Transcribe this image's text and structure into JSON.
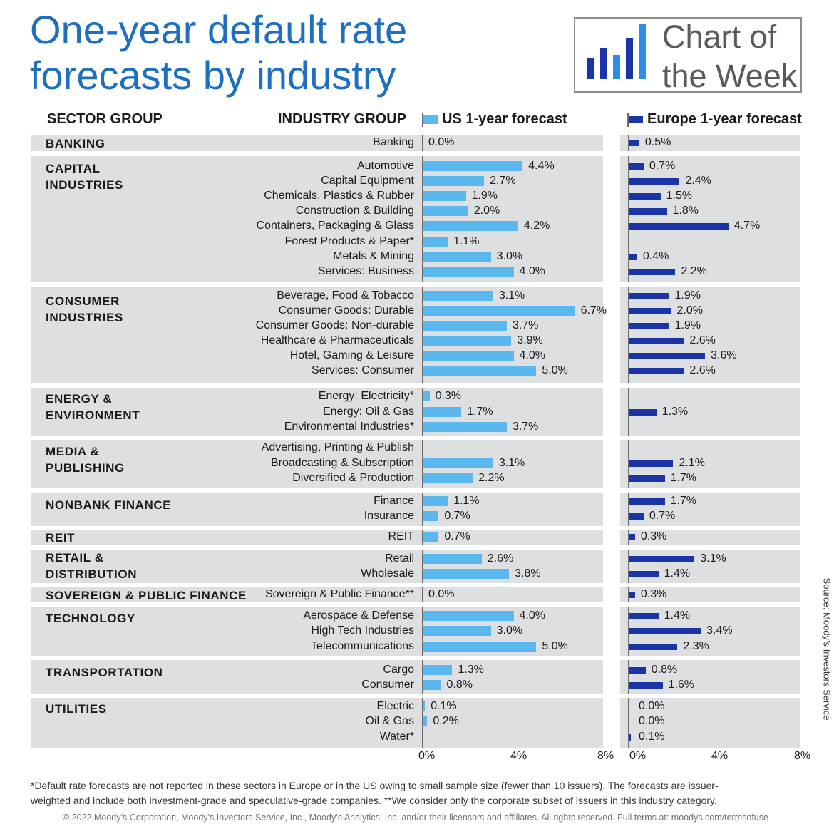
{
  "title": {
    "line1": "One-year default rate",
    "line2": "forecasts by industry"
  },
  "logo": {
    "line1": "Chart of",
    "line2": "the Week"
  },
  "headers": {
    "sector": "SECTOR GROUP",
    "industry": "INDUSTRY GROUP",
    "us": "US 1-year forecast",
    "europe": "Europe 1-year forecast"
  },
  "colors": {
    "title": "#1e6fc0",
    "us_bar": "#5ab8ef",
    "eu_bar": "#1b35a6",
    "band": "#dedfe1"
  },
  "chart_data": {
    "type": "bar",
    "orientation": "horizontal",
    "value_unit": "%",
    "xlim": [
      0,
      8
    ],
    "x_ticks": [
      "0%",
      "4%",
      "8%"
    ],
    "series": [
      {
        "name": "US 1-year forecast",
        "key": "us"
      },
      {
        "name": "Europe 1-year forecast",
        "key": "eu"
      }
    ],
    "groups": [
      {
        "sector": [
          "BANKING"
        ],
        "rows": [
          {
            "label": "Banking",
            "us": 0.0,
            "eu": 0.5,
            "us_label": "0.0%",
            "eu_label": "0.5%"
          }
        ]
      },
      {
        "sector": [
          "CAPITAL",
          "INDUSTRIES"
        ],
        "rows": [
          {
            "label": "Automotive",
            "us": 4.4,
            "eu": 0.7,
            "us_label": "4.4%",
            "eu_label": "0.7%"
          },
          {
            "label": "Capital Equipment",
            "us": 2.7,
            "eu": 2.4,
            "us_label": "2.7%",
            "eu_label": "2.4%"
          },
          {
            "label": "Chemicals, Plastics & Rubber",
            "us": 1.9,
            "eu": 1.5,
            "us_label": "1.9%",
            "eu_label": "1.5%"
          },
          {
            "label": "Construction & Building",
            "us": 2.0,
            "eu": 1.8,
            "us_label": "2.0%",
            "eu_label": "1.8%"
          },
          {
            "label": "Containers, Packaging & Glass",
            "us": 4.2,
            "eu": 4.7,
            "us_label": "4.2%",
            "eu_label": "4.7%"
          },
          {
            "label": "Forest Products & Paper*",
            "us": 1.1,
            "eu": null,
            "us_label": "1.1%",
            "eu_label": null
          },
          {
            "label": "Metals & Mining",
            "us": 3.0,
            "eu": 0.4,
            "us_label": "3.0%",
            "eu_label": "0.4%"
          },
          {
            "label": "Services: Business",
            "us": 4.0,
            "eu": 2.2,
            "us_label": "4.0%",
            "eu_label": "2.2%"
          }
        ]
      },
      {
        "sector": [
          "CONSUMER",
          "INDUSTRIES"
        ],
        "rows": [
          {
            "label": "Beverage, Food & Tobacco",
            "us": 3.1,
            "eu": 1.9,
            "us_label": "3.1%",
            "eu_label": "1.9%"
          },
          {
            "label": "Consumer Goods: Durable",
            "us": 6.7,
            "eu": 2.0,
            "us_label": "6.7%",
            "eu_label": "2.0%"
          },
          {
            "label": "Consumer Goods: Non-durable",
            "us": 3.7,
            "eu": 1.9,
            "us_label": "3.7%",
            "eu_label": "1.9%"
          },
          {
            "label": "Healthcare & Pharmaceuticals",
            "us": 3.9,
            "eu": 2.6,
            "us_label": "3.9%",
            "eu_label": "2.6%"
          },
          {
            "label": "Hotel, Gaming & Leisure",
            "us": 4.0,
            "eu": 3.6,
            "us_label": "4.0%",
            "eu_label": "3.6%"
          },
          {
            "label": "Services: Consumer",
            "us": 5.0,
            "eu": 2.6,
            "us_label": "5.0%",
            "eu_label": "2.6%"
          }
        ]
      },
      {
        "sector": [
          "ENERGY &",
          "ENVIRONMENT"
        ],
        "rows": [
          {
            "label": "Energy: Electricity*",
            "us": 0.3,
            "eu": null,
            "us_label": "0.3%",
            "eu_label": null
          },
          {
            "label": "Energy: Oil & Gas",
            "us": 1.7,
            "eu": 1.3,
            "us_label": "1.7%",
            "eu_label": "1.3%"
          },
          {
            "label": "Environmental Industries*",
            "us": 3.7,
            "eu": null,
            "us_label": "3.7%",
            "eu_label": null
          }
        ]
      },
      {
        "sector": [
          "MEDIA &",
          "PUBLISHING"
        ],
        "rows": [
          {
            "label": "Advertising, Printing & Publish",
            "us": null,
            "eu": null,
            "us_label": null,
            "eu_label": null
          },
          {
            "label": "Broadcasting & Subscription",
            "us": 3.1,
            "eu": 2.1,
            "us_label": "3.1%",
            "eu_label": "2.1%"
          },
          {
            "label": "Diversified & Production",
            "us": 2.2,
            "eu": 1.7,
            "us_label": "2.2%",
            "eu_label": "1.7%"
          }
        ]
      },
      {
        "sector": [
          "NONBANK FINANCE"
        ],
        "rows": [
          {
            "label": "Finance",
            "us": 1.1,
            "eu": 1.7,
            "us_label": "1.1%",
            "eu_label": "1.7%"
          },
          {
            "label": "Insurance",
            "us": 0.7,
            "eu": 0.7,
            "us_label": "0.7%",
            "eu_label": "0.7%"
          }
        ]
      },
      {
        "sector": [
          "REIT"
        ],
        "rows": [
          {
            "label": "REIT",
            "us": 0.7,
            "eu": 0.3,
            "us_label": "0.7%",
            "eu_label": "0.3%"
          }
        ]
      },
      {
        "sector": [
          "RETAIL &",
          "DISTRIBUTION"
        ],
        "rows": [
          {
            "label": "Retail",
            "us": 2.6,
            "eu": 3.1,
            "us_label": "2.6%",
            "eu_label": "3.1%"
          },
          {
            "label": "Wholesale",
            "us": 3.8,
            "eu": 1.4,
            "us_label": "3.8%",
            "eu_label": "1.4%"
          }
        ]
      },
      {
        "sector": [
          "SOVEREIGN & PUBLIC FINANCE"
        ],
        "rows": [
          {
            "label": "Sovereign & Public Finance**",
            "us": 0.0,
            "eu": 0.3,
            "us_label": "0.0%",
            "eu_label": "0.3%"
          }
        ]
      },
      {
        "sector": [
          "TECHNOLOGY"
        ],
        "rows": [
          {
            "label": "Aerospace & Defense",
            "us": 4.0,
            "eu": 1.4,
            "us_label": "4.0%",
            "eu_label": "1.4%"
          },
          {
            "label": "High Tech Industries",
            "us": 3.0,
            "eu": 3.4,
            "us_label": "3.0%",
            "eu_label": "3.4%"
          },
          {
            "label": "Telecommunications",
            "us": 5.0,
            "eu": 2.3,
            "us_label": "5.0%",
            "eu_label": "2.3%"
          }
        ]
      },
      {
        "sector": [
          "TRANSPORTATION"
        ],
        "rows": [
          {
            "label": "Cargo",
            "us": 1.3,
            "eu": 0.8,
            "us_label": "1.3%",
            "eu_label": "0.8%"
          },
          {
            "label": "Consumer",
            "us": 0.8,
            "eu": 1.6,
            "us_label": "0.8%",
            "eu_label": "1.6%"
          }
        ]
      },
      {
        "sector": [
          "UTILITIES"
        ],
        "rows": [
          {
            "label": "Electric",
            "us": 0.1,
            "eu": 0.0,
            "us_label": "0.1%",
            "eu_label": "0.0%"
          },
          {
            "label": "Oil & Gas",
            "us": 0.2,
            "eu": 0.0,
            "us_label": "0.2%",
            "eu_label": "0.0%"
          },
          {
            "label": "Water*",
            "us": null,
            "eu": 0.1,
            "us_label": null,
            "eu_label": "0.1%"
          }
        ]
      }
    ]
  },
  "footnote": {
    "line1": "*Default rate forecasts are not reported in these sectors in Europe or in the US owing to small sample size (fewer than 10 issuers). The forecasts are issuer-",
    "line2": "weighted and include both investment-grade and speculative-grade companies. **We consider only the corporate subset of issuers in this industry category."
  },
  "copyright": "© 2022 Moody’s Corporation, Moody’s Investors Service, Inc., Moody’s Analytics, Inc. and/or their licensors and affiliates. All rights reserved. Full terms at: moodys.com/termsofuse",
  "source": "Source: Moody’s Investors Service"
}
